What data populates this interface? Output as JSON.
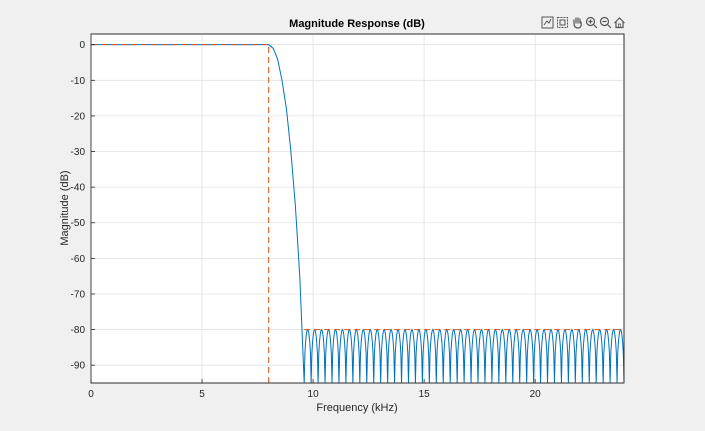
{
  "window": {
    "background": "#f0f0f0"
  },
  "toolbar": {
    "icons": [
      "data-tips-icon",
      "zoom-region-icon",
      "pan-hand-icon",
      "zoom-in-icon",
      "zoom-out-icon",
      "home-icon"
    ]
  },
  "colors": {
    "response": "#0072bd",
    "mask": "#d95319",
    "grid": "#e1e1e1",
    "axis": "#262626",
    "plot_bg": "#ffffff"
  },
  "chart_data": {
    "type": "line",
    "title": "Magnitude Response (dB)",
    "xlabel": "Frequency (kHz)",
    "ylabel": "Magnitude (dB)",
    "xlim": [
      0,
      24
    ],
    "ylim": [
      -95,
      3
    ],
    "xticks": [
      0,
      5,
      10,
      15,
      20
    ],
    "yticks": [
      0,
      -10,
      -20,
      -30,
      -40,
      -50,
      -60,
      -70,
      -80,
      -90
    ],
    "xtick_labels": [
      "0",
      "5",
      "10",
      "15",
      "20"
    ],
    "ytick_labels": [
      "0",
      "-10",
      "-20",
      "-30",
      "-40",
      "-50",
      "-60",
      "-70",
      "-80",
      "-90"
    ],
    "grid": true,
    "series": [
      {
        "role": "response",
        "passband_edge_khz": 8.0,
        "stopband_edge_khz": 9.6,
        "passband_db": 0,
        "stopband_ripple_db": -80,
        "stopband_floor_db": -95,
        "transition": [
          [
            8.0,
            0
          ],
          [
            8.2,
            -1
          ],
          [
            8.4,
            -4
          ],
          [
            8.6,
            -10
          ],
          [
            8.8,
            -18
          ],
          [
            9.0,
            -30
          ],
          [
            9.2,
            -45
          ],
          [
            9.4,
            -65
          ],
          [
            9.6,
            -95
          ]
        ],
        "stopband_lobe_count": 46
      },
      {
        "role": "mask",
        "points": [
          [
            0,
            0
          ],
          [
            8.0,
            0
          ],
          [
            8.0,
            -95
          ],
          null,
          [
            9.6,
            -80
          ],
          [
            24,
            -80
          ]
        ]
      }
    ]
  }
}
